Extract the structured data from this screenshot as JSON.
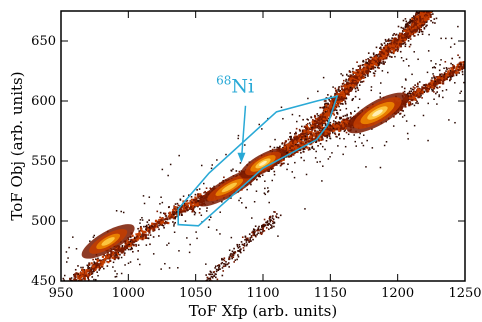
{
  "chart_data": {
    "type": "heatmap",
    "title": "",
    "xlabel": "ToF Xfp (arb. units)",
    "ylabel": "ToF Obj (arb. units)",
    "xlim": [
      950,
      1250
    ],
    "ylim": [
      450,
      675
    ],
    "x_ticks": [
      950,
      1000,
      1050,
      1100,
      1150,
      1200,
      1250
    ],
    "y_ticks": [
      450,
      500,
      550,
      600,
      650
    ],
    "grid": false,
    "legend": "none",
    "colormap": [
      "#3a0a00",
      "#7a1a00",
      "#c43d00",
      "#f08a00",
      "#ffd24a",
      "#fff6c8"
    ],
    "bands": [
      {
        "points": [
          [
            955,
            448
          ],
          [
            1030,
            505
          ],
          [
            1095,
            543
          ],
          [
            1150,
            578
          ],
          [
            1195,
            594
          ],
          [
            1250,
            632
          ]
        ]
      },
      {
        "points": [
          [
            1080,
            530
          ],
          [
            1140,
            582
          ],
          [
            1170,
            622
          ],
          [
            1210,
            660
          ],
          [
            1222,
            676
          ]
        ]
      },
      {
        "points": [
          [
            1050,
            442
          ],
          [
            1072,
            466
          ],
          [
            1092,
            488
          ],
          [
            1110,
            505
          ]
        ]
      }
    ],
    "clusters": [
      {
        "x": 985,
        "y": 483,
        "rx": 30,
        "ry": 10,
        "intensity": 0.6
      },
      {
        "x": 1075,
        "y": 528,
        "rx": 35,
        "ry": 9,
        "intensity": 0.8
      },
      {
        "x": 1100,
        "y": 548,
        "rx": 26,
        "ry": 9,
        "intensity": 1.0
      },
      {
        "x": 1185,
        "y": 590,
        "rx": 35,
        "ry": 12,
        "intensity": 1.0
      }
    ],
    "gate": {
      "label_pre": "68",
      "label_main": "Ni",
      "color": "#29a9d6",
      "polygon": [
        [
          1037,
          497
        ],
        [
          1037,
          510
        ],
        [
          1060,
          540
        ],
        [
          1110,
          591
        ],
        [
          1140,
          600
        ],
        [
          1155,
          604
        ],
        [
          1148,
          580
        ],
        [
          1140,
          568
        ],
        [
          1100,
          544
        ],
        [
          1052,
          496
        ]
      ],
      "label_at": [
        1086,
        607
      ],
      "arrow_from": [
        1087,
        596
      ],
      "arrow_to": [
        1084,
        556
      ]
    }
  }
}
